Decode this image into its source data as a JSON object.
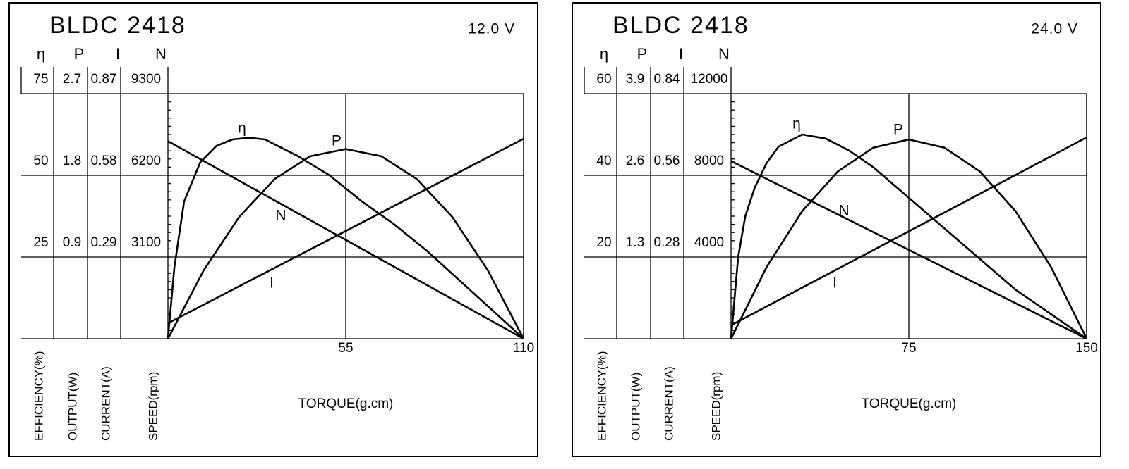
{
  "chart_data": [
    {
      "type": "line",
      "title": "BLDC 2418",
      "subtitle": "12.0 V",
      "x_label": "TORQUE(g.cm)",
      "xlim": [
        0,
        110
      ],
      "xticks": [
        55,
        110
      ],
      "axes": [
        {
          "name": "η",
          "label": "EFFICIENCY(%)",
          "ylim": [
            0,
            75
          ],
          "yticks": [
            25,
            50,
            75
          ]
        },
        {
          "name": "P",
          "label": "OUTPUT(W)",
          "ylim": [
            0,
            2.7
          ],
          "yticks": [
            0.9,
            1.8,
            2.7
          ]
        },
        {
          "name": "I",
          "label": "CURRENT(A)",
          "ylim": [
            0,
            0.87
          ],
          "yticks": [
            0.29,
            0.58,
            0.87
          ]
        },
        {
          "name": "N",
          "label": "SPEED(rpm)",
          "ylim": [
            0,
            9300
          ],
          "yticks": [
            3100,
            6200,
            9300
          ]
        }
      ],
      "series": [
        {
          "name": "η",
          "color": "#000000",
          "x": [
            0,
            2,
            5,
            10,
            15,
            20,
            25,
            30,
            40,
            50,
            60,
            70,
            80,
            90,
            100,
            105,
            110
          ],
          "values": [
            0,
            22,
            42,
            54,
            59,
            61,
            61.5,
            61,
            56,
            50,
            42,
            35,
            27,
            18,
            9,
            4.5,
            0
          ]
        },
        {
          "name": "P",
          "color": "#000000",
          "x": [
            0,
            11,
            22,
            33,
            44,
            55,
            66,
            77,
            88,
            99,
            110
          ],
          "values": [
            0,
            0.75,
            1.34,
            1.76,
            2.01,
            2.09,
            2.01,
            1.76,
            1.34,
            0.75,
            0
          ]
        },
        {
          "name": "I",
          "color": "#000000",
          "x": [
            0,
            110
          ],
          "values": [
            0.055,
            0.71
          ]
        },
        {
          "name": "N",
          "color": "#000000",
          "x": [
            0,
            110
          ],
          "values": [
            7500,
            0
          ]
        }
      ]
    },
    {
      "type": "line",
      "title": "BLDC 2418",
      "subtitle": "24.0 V",
      "x_label": "TORQUE(g.cm)",
      "xlim": [
        0,
        150
      ],
      "xticks": [
        75,
        150
      ],
      "axes": [
        {
          "name": "η",
          "label": "EFFICIENCY(%)",
          "ylim": [
            0,
            60
          ],
          "yticks": [
            20,
            40,
            60
          ]
        },
        {
          "name": "P",
          "label": "OUTPUT(W)",
          "ylim": [
            0,
            3.9
          ],
          "yticks": [
            1.3,
            2.6,
            3.9
          ]
        },
        {
          "name": "I",
          "label": "CURRENT(A)",
          "ylim": [
            0,
            0.84
          ],
          "yticks": [
            0.28,
            0.56,
            0.84
          ]
        },
        {
          "name": "N",
          "label": "SPEED(rpm)",
          "ylim": [
            0,
            12000
          ],
          "yticks": [
            4000,
            8000,
            12000
          ]
        }
      ],
      "series": [
        {
          "name": "η",
          "color": "#000000",
          "x": [
            0,
            3,
            6,
            10,
            15,
            20,
            30,
            40,
            50,
            60,
            70,
            80,
            90,
            100,
            110,
            120,
            130,
            140,
            150
          ],
          "values": [
            0,
            20,
            30,
            37,
            43,
            47,
            50,
            49,
            46,
            42,
            37,
            32,
            27,
            22,
            17,
            12,
            8,
            4,
            0
          ]
        },
        {
          "name": "P",
          "color": "#000000",
          "x": [
            0,
            15,
            30,
            45,
            60,
            75,
            90,
            105,
            120,
            135,
            150
          ],
          "values": [
            0,
            1.14,
            2.03,
            2.66,
            3.04,
            3.17,
            3.04,
            2.66,
            2.03,
            1.14,
            0
          ]
        },
        {
          "name": "I",
          "color": "#000000",
          "x": [
            0,
            150
          ],
          "values": [
            0.046,
            0.69
          ]
        },
        {
          "name": "N",
          "color": "#000000",
          "x": [
            0,
            150
          ],
          "values": [
            8700,
            0
          ]
        }
      ]
    }
  ]
}
